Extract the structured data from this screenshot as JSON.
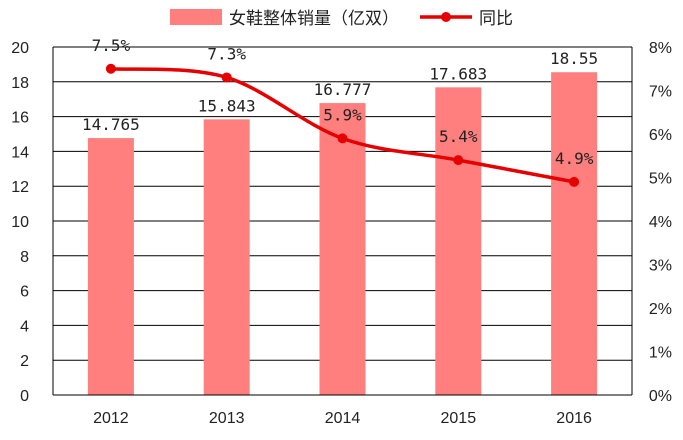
{
  "chart_data": {
    "type": "bar+line",
    "categories": [
      "2012",
      "2013",
      "2014",
      "2015",
      "2016"
    ],
    "series": [
      {
        "name": "女鞋整体销量（亿双）",
        "type": "bar",
        "axis": "left",
        "values": [
          14.765,
          15.843,
          16.777,
          17.683,
          18.55
        ],
        "labels": [
          "14.765",
          "15.843",
          "16.777",
          "17.683",
          "18.55"
        ],
        "color": "#ff7f7f"
      },
      {
        "name": "同比",
        "type": "line",
        "axis": "right",
        "values": [
          7.5,
          7.3,
          5.9,
          5.4,
          4.9
        ],
        "labels": [
          "7.5%",
          "7.3%",
          "5.9%",
          "5.4%",
          "4.9%"
        ],
        "color": "#e60000"
      }
    ],
    "y_left": {
      "min": 0,
      "max": 20,
      "step": 2,
      "ticks": [
        "0",
        "2",
        "4",
        "6",
        "8",
        "10",
        "12",
        "14",
        "16",
        "18",
        "20"
      ]
    },
    "y_right": {
      "min": 0,
      "max": 8,
      "step": 1,
      "ticks": [
        "0%",
        "1%",
        "2%",
        "3%",
        "4%",
        "5%",
        "6%",
        "7%",
        "8%"
      ]
    },
    "grid": true,
    "legend_position": "top-center"
  }
}
